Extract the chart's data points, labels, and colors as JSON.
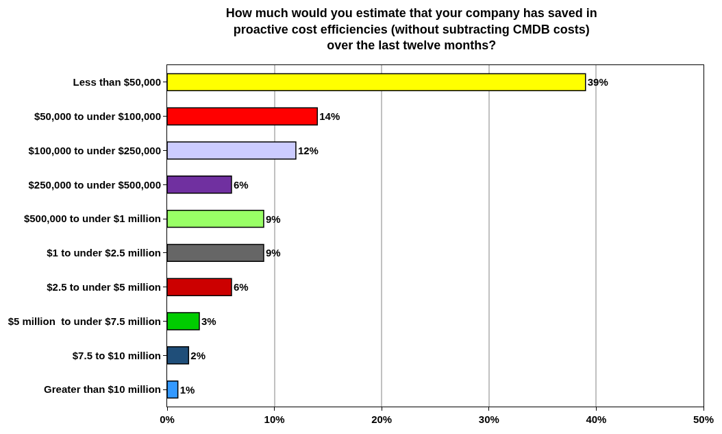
{
  "chart_data": {
    "type": "bar",
    "orientation": "horizontal",
    "title": "How much would you estimate that your company has saved in\nproactive cost efficiencies (without subtracting CMDB costs)\nover the last twelve months?",
    "categories": [
      "Less than $50,000",
      "$50,000 to under $100,000",
      "$100,000 to under $250,000",
      "$250,000 to under $500,000",
      "$500,000 to under $1 million",
      "$1 to under $2.5 million",
      "$2.5 to under $5 million",
      "$5 million  to under $7.5 million",
      "$7.5 to $10 million",
      "Greater than $10 million"
    ],
    "values": [
      39,
      14,
      12,
      6,
      9,
      9,
      6,
      3,
      2,
      1
    ],
    "value_labels": [
      "39%",
      "14%",
      "12%",
      "6%",
      "9%",
      "9%",
      "6%",
      "3%",
      "2%",
      "1%"
    ],
    "colors": [
      "#ffff00",
      "#ff0000",
      "#ccccff",
      "#7030a0",
      "#99ff66",
      "#666666",
      "#cc0000",
      "#00cc00",
      "#1f4e79",
      "#3399ff"
    ],
    "xlim": [
      0,
      50
    ],
    "xticks": [
      {
        "value": 0,
        "label": "0%"
      },
      {
        "value": 10,
        "label": "10%"
      },
      {
        "value": 20,
        "label": "20%"
      },
      {
        "value": 30,
        "label": "30%"
      },
      {
        "value": 40,
        "label": "40%"
      },
      {
        "value": 50,
        "label": "50%"
      }
    ],
    "grid": "x",
    "legend": false
  }
}
